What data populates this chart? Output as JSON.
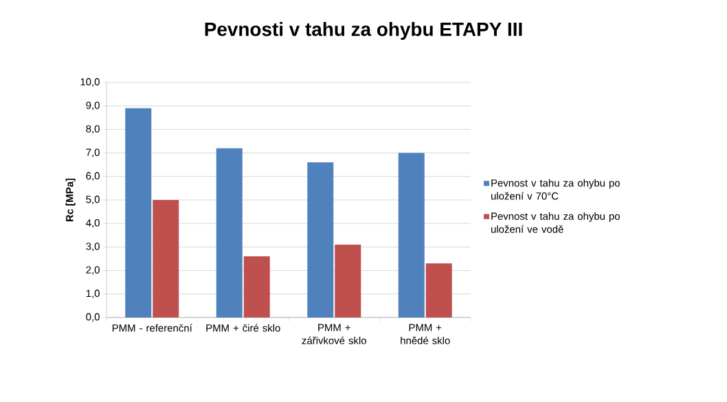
{
  "chart_data": {
    "type": "bar",
    "title": "Pevnosti v tahu za ohybu ETAPY III",
    "ylabel": "Rc [MPa]",
    "categories": [
      "PMM - referenční",
      "PMM + čiré sklo",
      "PMM + zářivkové sklo",
      "PMM + hnědé sklo"
    ],
    "series": [
      {
        "name": "Pevnost v tahu za ohybu po uložení v 70°C",
        "color": "#4f81bd",
        "values": [
          8.9,
          7.2,
          6.6,
          7.0
        ]
      },
      {
        "name": "Pevnost v tahu za ohybu po uložení ve vodě",
        "color": "#c0504d",
        "values": [
          5.0,
          2.6,
          3.1,
          2.3
        ]
      }
    ],
    "ylim": [
      0,
      10
    ],
    "yticks": [
      {
        "value": 0,
        "label": "0,0"
      },
      {
        "value": 1,
        "label": "1,0"
      },
      {
        "value": 2,
        "label": "2,0"
      },
      {
        "value": 3,
        "label": "3,0"
      },
      {
        "value": 4,
        "label": "4,0"
      },
      {
        "value": 5,
        "label": "5,0"
      },
      {
        "value": 6,
        "label": "6,0"
      },
      {
        "value": 7,
        "label": "7,0"
      },
      {
        "value": 8,
        "label": "8,0"
      },
      {
        "value": 9,
        "label": "9,0"
      },
      {
        "value": 10,
        "label": "10,0"
      }
    ],
    "grid": "y",
    "legend": "right"
  }
}
